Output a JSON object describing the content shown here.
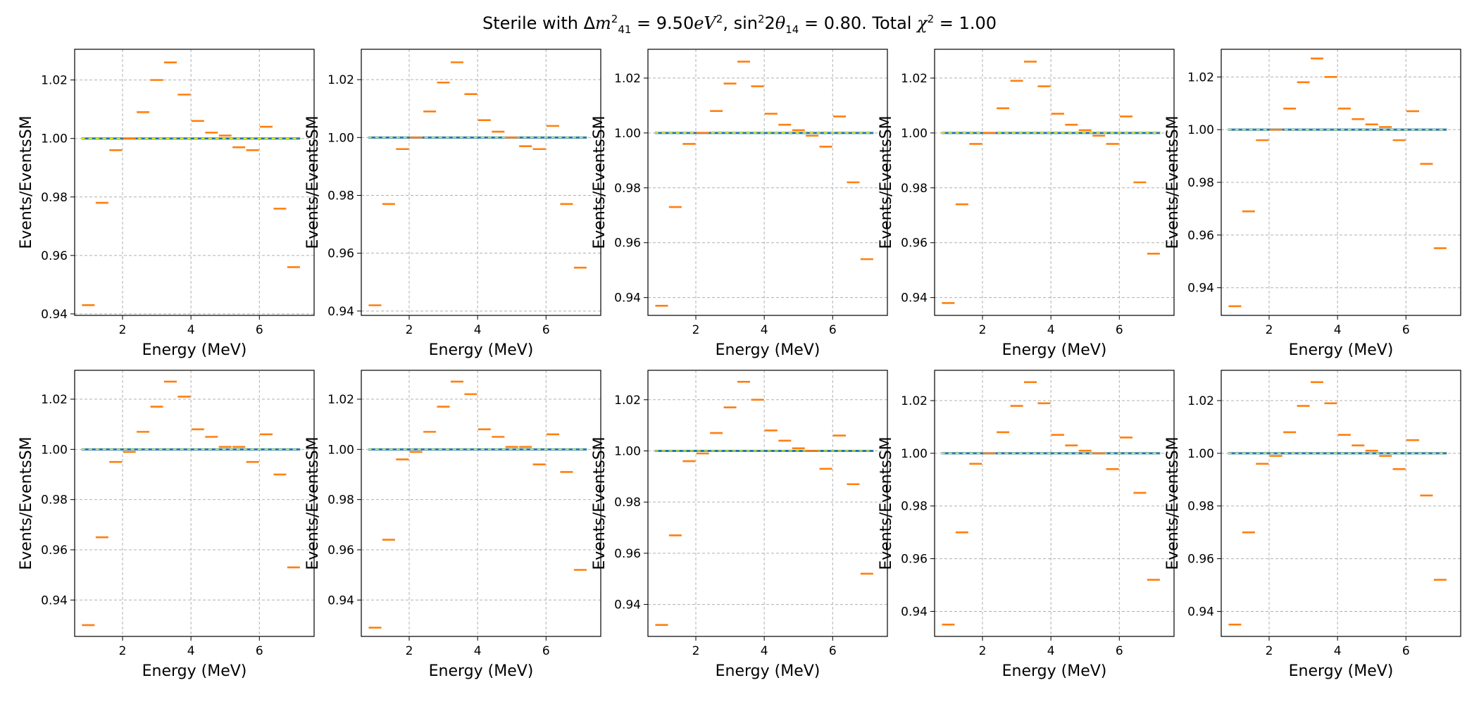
{
  "figure": {
    "title_prefix": "Sterile with ",
    "dm_value": "9.50",
    "sin_value": "0.80",
    "chi_value": "1.00"
  },
  "colors": {
    "sm_line": "#1f77b4",
    "ratio_marker": "#ff7f0e",
    "ref_line": "#ffff00",
    "grid": "#b0b0b0"
  },
  "chart_data": [
    {
      "type": "scatter",
      "xlabel": "Energy (MeV)",
      "ylabel": "Events/EventsSM",
      "xlim": [
        0.6,
        7.6
      ],
      "ylim": [
        0.9395,
        1.0305
      ],
      "yticks": [
        0.94,
        0.96,
        0.98,
        1.0,
        1.02
      ],
      "xticks": [
        2,
        4,
        6
      ],
      "grid": true,
      "x": [
        1.0,
        1.4,
        1.8,
        2.2,
        2.6,
        3.0,
        3.4,
        3.8,
        4.2,
        4.6,
        5.0,
        5.4,
        5.8,
        6.2,
        6.6,
        7.0
      ],
      "ratio": [
        0.943,
        0.978,
        0.996,
        1.0,
        1.009,
        1.02,
        1.026,
        1.015,
        1.006,
        1.002,
        1.001,
        0.997,
        0.996,
        1.004,
        0.976,
        0.956
      ]
    },
    {
      "type": "scatter",
      "xlabel": "Energy (MeV)",
      "ylabel": "Events/EventsSM",
      "xlim": [
        0.6,
        7.6
      ],
      "ylim": [
        0.9385,
        1.0305
      ],
      "yticks": [
        0.94,
        0.96,
        0.98,
        1.0,
        1.02
      ],
      "xticks": [
        2,
        4,
        6
      ],
      "grid": true,
      "x": [
        1.0,
        1.4,
        1.8,
        2.2,
        2.6,
        3.0,
        3.4,
        3.8,
        4.2,
        4.6,
        5.0,
        5.4,
        5.8,
        6.2,
        6.6,
        7.0
      ],
      "ratio": [
        0.942,
        0.977,
        0.996,
        1.0,
        1.009,
        1.019,
        1.026,
        1.015,
        1.006,
        1.002,
        1.0,
        0.997,
        0.996,
        1.004,
        0.977,
        0.955
      ]
    },
    {
      "type": "scatter",
      "xlabel": "Energy (MeV)",
      "ylabel": "Events/EventsSM",
      "xlim": [
        0.6,
        7.6
      ],
      "ylim": [
        0.9335,
        1.0305
      ],
      "yticks": [
        0.94,
        0.96,
        0.98,
        1.0,
        1.02
      ],
      "xticks": [
        2,
        4,
        6
      ],
      "grid": true,
      "x": [
        1.0,
        1.4,
        1.8,
        2.2,
        2.6,
        3.0,
        3.4,
        3.8,
        4.2,
        4.6,
        5.0,
        5.4,
        5.8,
        6.2,
        6.6,
        7.0
      ],
      "ratio": [
        0.937,
        0.973,
        0.996,
        1.0,
        1.008,
        1.018,
        1.026,
        1.017,
        1.007,
        1.003,
        1.001,
        0.999,
        0.995,
        1.006,
        0.982,
        0.954
      ]
    },
    {
      "type": "scatter",
      "xlabel": "Energy (MeV)",
      "ylabel": "Events/EventsSM",
      "xlim": [
        0.6,
        7.6
      ],
      "ylim": [
        0.9335,
        1.0305
      ],
      "yticks": [
        0.94,
        0.96,
        0.98,
        1.0,
        1.02
      ],
      "xticks": [
        2,
        4,
        6
      ],
      "grid": true,
      "x": [
        1.0,
        1.4,
        1.8,
        2.2,
        2.6,
        3.0,
        3.4,
        3.8,
        4.2,
        4.6,
        5.0,
        5.4,
        5.8,
        6.2,
        6.6,
        7.0
      ],
      "ratio": [
        0.938,
        0.974,
        0.996,
        1.0,
        1.009,
        1.019,
        1.026,
        1.017,
        1.007,
        1.003,
        1.001,
        0.999,
        0.996,
        1.006,
        0.982,
        0.956
      ]
    },
    {
      "type": "scatter",
      "xlabel": "Energy (MeV)",
      "ylabel": "Events/EventsSM",
      "xlim": [
        0.6,
        7.6
      ],
      "ylim": [
        0.9295,
        1.0305
      ],
      "yticks": [
        0.94,
        0.96,
        0.98,
        1.0,
        1.02
      ],
      "xticks": [
        2,
        4,
        6
      ],
      "grid": true,
      "x": [
        1.0,
        1.4,
        1.8,
        2.2,
        2.6,
        3.0,
        3.4,
        3.8,
        4.2,
        4.6,
        5.0,
        5.4,
        5.8,
        6.2,
        6.6,
        7.0
      ],
      "ratio": [
        0.933,
        0.969,
        0.996,
        1.0,
        1.008,
        1.018,
        1.027,
        1.02,
        1.008,
        1.004,
        1.002,
        1.001,
        0.996,
        1.007,
        0.987,
        0.955
      ]
    },
    {
      "type": "scatter",
      "xlabel": "Energy (MeV)",
      "ylabel": "Events/EventsSM",
      "xlim": [
        0.6,
        7.6
      ],
      "ylim": [
        0.9255,
        1.0315
      ],
      "yticks": [
        0.94,
        0.96,
        0.98,
        1.0,
        1.02
      ],
      "xticks": [
        2,
        4,
        6
      ],
      "grid": true,
      "x": [
        1.0,
        1.4,
        1.8,
        2.2,
        2.6,
        3.0,
        3.4,
        3.8,
        4.2,
        4.6,
        5.0,
        5.4,
        5.8,
        6.2,
        6.6,
        7.0
      ],
      "ratio": [
        0.93,
        0.965,
        0.995,
        0.999,
        1.007,
        1.017,
        1.027,
        1.021,
        1.008,
        1.005,
        1.001,
        1.001,
        0.995,
        1.006,
        0.99,
        0.953
      ]
    },
    {
      "type": "scatter",
      "xlabel": "Energy (MeV)",
      "ylabel": "Events/EventsSM",
      "xlim": [
        0.6,
        7.6
      ],
      "ylim": [
        0.9255,
        1.0315
      ],
      "yticks": [
        0.94,
        0.96,
        0.98,
        1.0,
        1.02
      ],
      "xticks": [
        2,
        4,
        6
      ],
      "grid": true,
      "x": [
        1.0,
        1.4,
        1.8,
        2.2,
        2.6,
        3.0,
        3.4,
        3.8,
        4.2,
        4.6,
        5.0,
        5.4,
        5.8,
        6.2,
        6.6,
        7.0
      ],
      "ratio": [
        0.929,
        0.964,
        0.996,
        0.999,
        1.007,
        1.017,
        1.027,
        1.022,
        1.008,
        1.005,
        1.001,
        1.001,
        0.994,
        1.006,
        0.991,
        0.952
      ]
    },
    {
      "type": "scatter",
      "xlabel": "Energy (MeV)",
      "ylabel": "Events/EventsSM",
      "xlim": [
        0.6,
        7.6
      ],
      "ylim": [
        0.9275,
        1.0315
      ],
      "yticks": [
        0.94,
        0.96,
        0.98,
        1.0,
        1.02
      ],
      "xticks": [
        2,
        4,
        6
      ],
      "grid": true,
      "x": [
        1.0,
        1.4,
        1.8,
        2.2,
        2.6,
        3.0,
        3.4,
        3.8,
        4.2,
        4.6,
        5.0,
        5.4,
        5.8,
        6.2,
        6.6,
        7.0
      ],
      "ratio": [
        0.932,
        0.967,
        0.996,
        0.999,
        1.007,
        1.017,
        1.027,
        1.02,
        1.008,
        1.004,
        1.001,
        1.0,
        0.993,
        1.006,
        0.987,
        0.952
      ]
    },
    {
      "type": "scatter",
      "xlabel": "Energy (MeV)",
      "ylabel": "Events/EventsSM",
      "xlim": [
        0.6,
        7.6
      ],
      "ylim": [
        0.9305,
        1.0315
      ],
      "yticks": [
        0.94,
        0.96,
        0.98,
        1.0,
        1.02
      ],
      "xticks": [
        2,
        4,
        6
      ],
      "grid": true,
      "x": [
        1.0,
        1.4,
        1.8,
        2.2,
        2.6,
        3.0,
        3.4,
        3.8,
        4.2,
        4.6,
        5.0,
        5.4,
        5.8,
        6.2,
        6.6,
        7.0
      ],
      "ratio": [
        0.935,
        0.97,
        0.996,
        1.0,
        1.008,
        1.018,
        1.027,
        1.019,
        1.007,
        1.003,
        1.001,
        1.0,
        0.994,
        1.006,
        0.985,
        0.952
      ]
    },
    {
      "type": "scatter",
      "xlabel": "Energy (MeV)",
      "ylabel": "Events/EventsSM",
      "xlim": [
        0.6,
        7.6
      ],
      "ylim": [
        0.9305,
        1.0315
      ],
      "yticks": [
        0.94,
        0.96,
        0.98,
        1.0,
        1.02
      ],
      "xticks": [
        2,
        4,
        6
      ],
      "grid": true,
      "x": [
        1.0,
        1.4,
        1.8,
        2.2,
        2.6,
        3.0,
        3.4,
        3.8,
        4.2,
        4.6,
        5.0,
        5.4,
        5.8,
        6.2,
        6.6,
        7.0
      ],
      "ratio": [
        0.935,
        0.97,
        0.996,
        0.999,
        1.008,
        1.018,
        1.027,
        1.019,
        1.007,
        1.003,
        1.001,
        0.999,
        0.994,
        1.005,
        0.984,
        0.952
      ]
    }
  ]
}
